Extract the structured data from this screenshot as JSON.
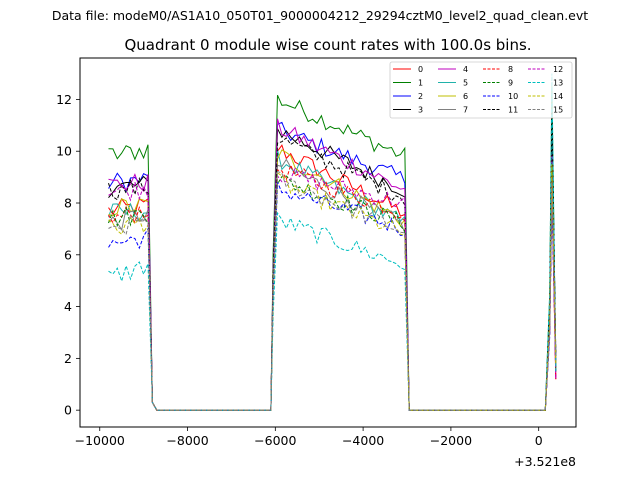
{
  "suptitle": "Data file: modeM0/AS1A10_050T01_9000004212_29294cztM0_level2_quad_clean.evt",
  "chart_data": {
    "type": "line",
    "title": "Quadrant 0 module wise count rates with 100.0s bins.",
    "xlabel": "",
    "ylabel": "",
    "x_offset_label": "+3.521e8",
    "xlim": [
      -10450,
      850
    ],
    "ylim": [
      -0.65,
      13.6
    ],
    "x_ticks": [
      {
        "value": -10000,
        "label": "−10000"
      },
      {
        "value": -8000,
        "label": "−8000"
      },
      {
        "value": -6000,
        "label": "−6000"
      },
      {
        "value": -4000,
        "label": "−4000"
      },
      {
        "value": -2000,
        "label": "−2000"
      },
      {
        "value": 0,
        "label": "0"
      }
    ],
    "y_ticks": [
      {
        "value": 0,
        "label": "0"
      },
      {
        "value": 2,
        "label": "2"
      },
      {
        "value": 4,
        "label": "4"
      },
      {
        "value": 6,
        "label": "6"
      },
      {
        "value": 8,
        "label": "8"
      },
      {
        "value": 10,
        "label": "10"
      },
      {
        "value": 12,
        "label": "12"
      }
    ],
    "grid": false,
    "legend_position": "top-right",
    "legend_columns": 4,
    "segments": [
      {
        "start": -9800,
        "end": -8900
      },
      {
        "start": -6050,
        "end": -3050
      },
      {
        "start": 250,
        "end": 350
      }
    ],
    "small_peak": {
      "x": -800,
      "values": [
        0.4,
        0.6,
        0.7,
        0.5
      ]
    },
    "series": [
      {
        "name": "0",
        "color": "#ff0000",
        "dash": false,
        "seg_levels": [
          7.7,
          10.2,
          8.6
        ],
        "seg_end_levels": [
          7.9,
          7.6
        ]
      },
      {
        "name": "1",
        "color": "#008000",
        "dash": false,
        "seg_levels": [
          9.8,
          12.1,
          12.5
        ],
        "seg_end_levels": [
          10.1,
          9.8
        ]
      },
      {
        "name": "2",
        "color": "#0000ff",
        "dash": false,
        "seg_levels": [
          8.8,
          10.9,
          10.2
        ],
        "seg_end_levels": [
          8.9,
          8.9
        ]
      },
      {
        "name": "3",
        "color": "#000000",
        "dash": false,
        "seg_levels": [
          8.6,
          10.9,
          11.3
        ],
        "seg_end_levels": [
          8.7,
          8.5
        ]
      },
      {
        "name": "4",
        "color": "#bf00bf",
        "dash": false,
        "seg_levels": [
          8.7,
          11.0,
          9.9
        ],
        "seg_end_levels": [
          8.8,
          8.5
        ]
      },
      {
        "name": "5",
        "color": "#20b2aa",
        "dash": false,
        "seg_levels": [
          7.6,
          9.8,
          9.0
        ],
        "seg_end_levels": [
          7.7,
          7.2
        ]
      },
      {
        "name": "6",
        "color": "#bfbf00",
        "dash": false,
        "seg_levels": [
          7.8,
          10.0,
          9.4
        ],
        "seg_end_levels": [
          7.9,
          7.3
        ]
      },
      {
        "name": "7",
        "color": "#808080",
        "dash": false,
        "seg_levels": [
          7.2,
          9.6,
          8.8
        ],
        "seg_end_levels": [
          7.6,
          7.1
        ]
      },
      {
        "name": "8",
        "color": "#ff0000",
        "dash": true,
        "seg_levels": [
          7.3,
          9.4,
          8.6
        ],
        "seg_end_levels": [
          7.8,
          7.6
        ]
      },
      {
        "name": "9",
        "color": "#008000",
        "dash": true,
        "seg_levels": [
          7.4,
          9.0,
          9.2
        ],
        "seg_end_levels": [
          7.6,
          7.2
        ]
      },
      {
        "name": "10",
        "color": "#0000ff",
        "dash": true,
        "seg_levels": [
          6.4,
          8.6,
          8.1
        ],
        "seg_end_levels": [
          6.7,
          7.0
        ]
      },
      {
        "name": "11",
        "color": "#000000",
        "dash": true,
        "seg_levels": [
          8.5,
          10.6,
          11.5
        ],
        "seg_end_levels": [
          8.6,
          8.2
        ]
      },
      {
        "name": "12",
        "color": "#bf00bf",
        "dash": true,
        "seg_levels": [
          8.4,
          9.2,
          9.0
        ],
        "seg_end_levels": [
          8.6,
          8.0
        ]
      },
      {
        "name": "13",
        "color": "#00bfbf",
        "dash": true,
        "seg_levels": [
          5.1,
          7.4,
          13.0
        ],
        "seg_end_levels": [
          5.6,
          5.6
        ]
      },
      {
        "name": "14",
        "color": "#bfbf00",
        "dash": true,
        "seg_levels": [
          7.0,
          8.9,
          9.5
        ],
        "seg_end_levels": [
          7.3,
          6.8
        ]
      },
      {
        "name": "15",
        "color": "#808080",
        "dash": true,
        "seg_levels": [
          6.7,
          9.0,
          8.8
        ],
        "seg_end_levels": [
          7.5,
          6.9
        ]
      }
    ]
  }
}
